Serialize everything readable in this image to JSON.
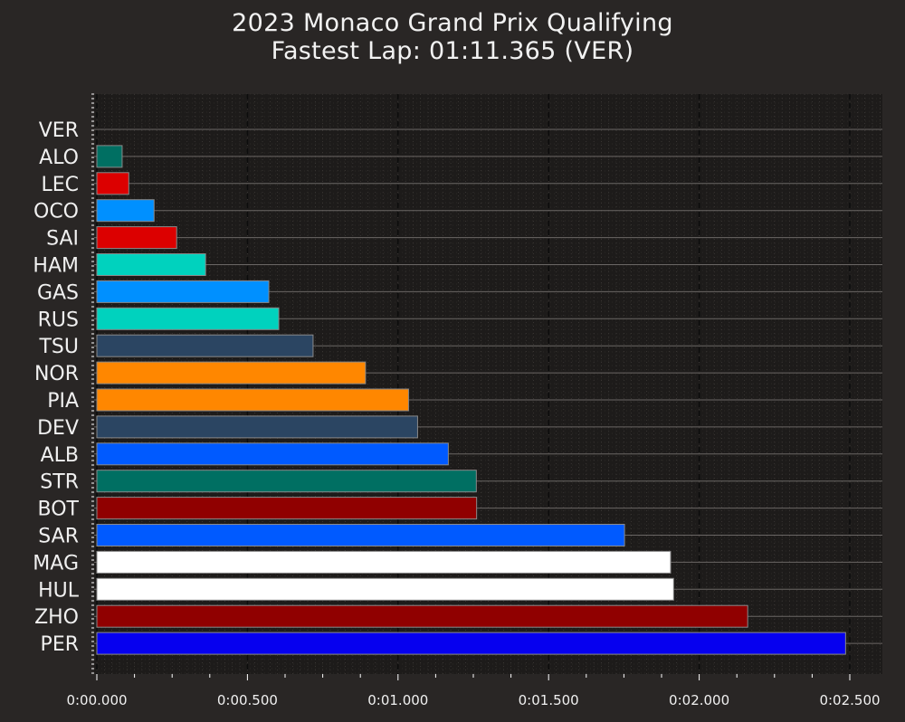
{
  "chart_data": {
    "type": "bar",
    "orientation": "horizontal",
    "title": "2023 Monaco Grand Prix Qualifying",
    "subtitle": "Fastest Lap: 01:11.365 (VER)",
    "xlabel": "",
    "ylabel": "",
    "xlim": [
      0,
      2.6
    ],
    "x_tick_labels": [
      "0:00.000",
      "0:00.500",
      "0:01.000",
      "0:01.500",
      "0:02.000",
      "0:02.500"
    ],
    "x_tick_values": [
      0,
      0.5,
      1.0,
      1.5,
      2.0,
      2.5
    ],
    "grid": true,
    "categories": [
      "VER",
      "ALO",
      "LEC",
      "OCO",
      "SAI",
      "HAM",
      "GAS",
      "RUS",
      "TSU",
      "NOR",
      "PIA",
      "DEV",
      "ALB",
      "STR",
      "BOT",
      "SAR",
      "MAG",
      "HUL",
      "ZHO",
      "PER"
    ],
    "values": [
      0.0,
      0.084,
      0.106,
      0.19,
      0.265,
      0.361,
      0.571,
      0.604,
      0.718,
      0.892,
      1.035,
      1.065,
      1.167,
      1.26,
      1.261,
      1.752,
      1.905,
      1.915,
      2.161,
      2.486
    ],
    "colors": [
      "#3671C6",
      "#006F62",
      "#DC0000",
      "#0090FF",
      "#DC0000",
      "#00D2BE",
      "#0090FF",
      "#00D2BE",
      "#2B4562",
      "#FF8700",
      "#FF8700",
      "#2B4562",
      "#005AFF",
      "#006F62",
      "#900000",
      "#005AFF",
      "#FFFFFF",
      "#FFFFFF",
      "#900000",
      "#0600EF"
    ]
  }
}
